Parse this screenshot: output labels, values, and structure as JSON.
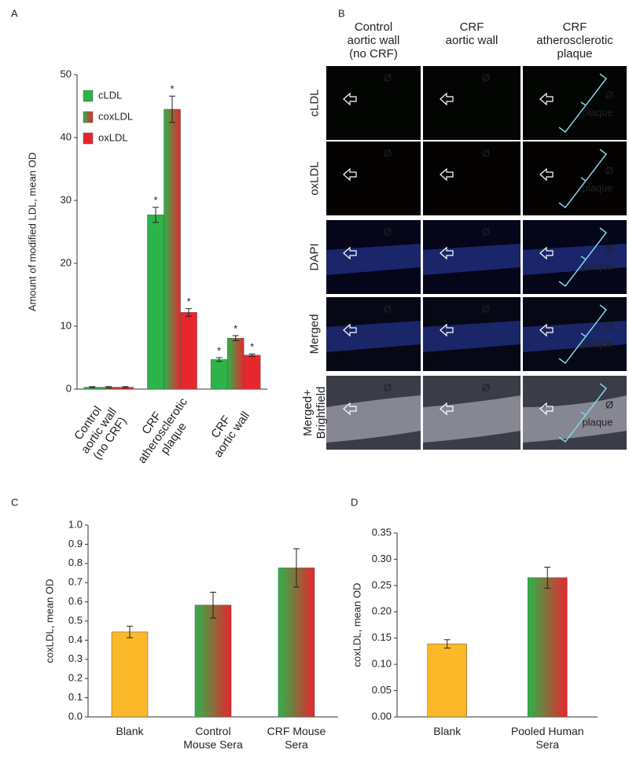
{
  "panel_labels": [
    "A",
    "B",
    "C",
    "D"
  ],
  "chart_data": [
    {
      "type": "bar",
      "ylabel": "Amount of modified LDL,  mean OD",
      "categories": [
        "Control\naortic wall\n(no CRF)",
        "CRF\natherosclerotic\nplaque",
        "CRF\naortic wall"
      ],
      "series": [
        {
          "name": "cLDL",
          "color": "#2db34a",
          "values": [
            0.3,
            27.7,
            4.7
          ],
          "errors": [
            0.1,
            1.2,
            0.3
          ],
          "significance": [
            null,
            "*",
            "*"
          ]
        },
        {
          "name": "coxLDL",
          "color": [
            "#2db34a",
            "#e8262e"
          ],
          "values": [
            0.3,
            44.5,
            8.1
          ],
          "errors": [
            0.1,
            2.1,
            0.4
          ],
          "significance": [
            null,
            "*",
            "*"
          ]
        },
        {
          "name": "oxLDL",
          "color": "#e8262e",
          "values": [
            0.3,
            12.2,
            5.4
          ],
          "errors": [
            0.1,
            0.6,
            0.2
          ],
          "significance": [
            null,
            "*",
            "*"
          ]
        }
      ],
      "ylim": [
        0,
        50
      ],
      "yticks": [
        0,
        10,
        20,
        30,
        40,
        50
      ],
      "grid": false,
      "legend": "upper left"
    },
    {
      "type": "bar",
      "ylabel": "coxLDL,  mean OD",
      "categories": [
        "Blank",
        "Control\nMouse Sera",
        "CRF Mouse\nSera"
      ],
      "values": [
        0.443,
        0.583,
        0.777
      ],
      "errors": [
        0.03,
        0.067,
        0.1
      ],
      "colors": [
        "#fbb829",
        [
          "#2db34a",
          "#e8262e"
        ],
        [
          "#2db34a",
          "#e8262e"
        ]
      ],
      "ylim": [
        0,
        1.0
      ],
      "yticks": [
        {
          "value": 0,
          "label": "0.0"
        },
        0.1,
        0.2,
        0.3,
        0.4,
        0.5,
        0.6,
        0.7,
        0.8,
        0.9,
        {
          "value": 1,
          "label": "1.0"
        }
      ],
      "grid": false
    },
    {
      "type": "bar",
      "ylabel": "coxLDL,  mean OD",
      "categories": [
        "Blank",
        "Pooled Human\nSera"
      ],
      "values": [
        0.139,
        0.265
      ],
      "errors": [
        0.008,
        0.02
      ],
      "colors": [
        "#fbb829",
        [
          "#2db34a",
          "#e8262e"
        ]
      ],
      "ylim": [
        0,
        0.35
      ],
      "yticks": [
        {
          "value": 0,
          "label": "0.00"
        },
        {
          "value": 0.05,
          "label": "0.05"
        },
        {
          "value": 0.1,
          "label": "0.10"
        },
        {
          "value": 0.15,
          "label": "0.15"
        },
        {
          "value": 0.2,
          "label": "0.20"
        },
        {
          "value": 0.25,
          "label": "0.25"
        },
        {
          "value": 0.3,
          "label": "0.30"
        },
        {
          "value": 0.35,
          "label": "0.35"
        }
      ],
      "grid": false
    }
  ],
  "panel_b": {
    "columns": [
      "Control\naortic wall\n(no CRF)",
      "CRF\naortic wall",
      "CRF\natherosclerotic\nplaque"
    ],
    "rows": [
      "cLDL",
      "oxLDL",
      "DAPI",
      "Merged",
      "Merged+\nBrightfield"
    ],
    "lumen_symbol": "Ø",
    "plaque_label": "plaque"
  }
}
